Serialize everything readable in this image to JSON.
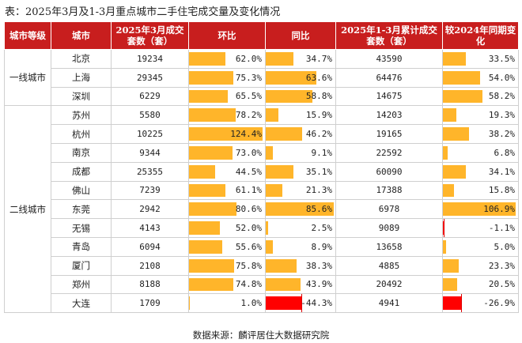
{
  "title": "表：2025年3月及1-3月重点城市二手住宅成交量及变化情况",
  "source": "数据来源：麟评居住大数据研究院",
  "headers": [
    "城市等级",
    "城市",
    "2025年3月成交套数（套）",
    "环比",
    "同比",
    "2025年1-3月累计成交套数（套）",
    "较2024年同期变化"
  ],
  "colors": {
    "header_bg": "#c81e1e",
    "bar_positive": "#ffb52a",
    "bar_negative": "#ff0000"
  },
  "groups": [
    {
      "tier": "一线城市",
      "rows": [
        {
          "city": "北京",
          "mar_units": "19234",
          "mom": "62.0%",
          "mom_v": 62.0,
          "yoy": "34.7%",
          "yoy_v": 34.7,
          "ytd_units": "43590",
          "ytd_chg": "33.5%",
          "ytd_v": 33.5
        },
        {
          "city": "上海",
          "mar_units": "29345",
          "mom": "75.3%",
          "mom_v": 75.3,
          "yoy": "63.6%",
          "yoy_v": 63.6,
          "ytd_units": "64476",
          "ytd_chg": "54.0%",
          "ytd_v": 54.0
        },
        {
          "city": "深圳",
          "mar_units": "6229",
          "mom": "65.5%",
          "mom_v": 65.5,
          "yoy": "58.8%",
          "yoy_v": 58.8,
          "ytd_units": "14675",
          "ytd_chg": "58.2%",
          "ytd_v": 58.2
        }
      ]
    },
    {
      "tier": "二线城市",
      "rows": [
        {
          "city": "苏州",
          "mar_units": "5580",
          "mom": "78.2%",
          "mom_v": 78.2,
          "yoy": "15.9%",
          "yoy_v": 15.9,
          "ytd_units": "14203",
          "ytd_chg": "19.3%",
          "ytd_v": 19.3
        },
        {
          "city": "杭州",
          "mar_units": "10225",
          "mom": "124.4%",
          "mom_v": 124.4,
          "yoy": "46.2%",
          "yoy_v": 46.2,
          "ytd_units": "19165",
          "ytd_chg": "38.2%",
          "ytd_v": 38.2
        },
        {
          "city": "南京",
          "mar_units": "9344",
          "mom": "73.0%",
          "mom_v": 73.0,
          "yoy": "9.1%",
          "yoy_v": 9.1,
          "ytd_units": "22592",
          "ytd_chg": "6.8%",
          "ytd_v": 6.8
        },
        {
          "city": "成都",
          "mar_units": "25355",
          "mom": "44.5%",
          "mom_v": 44.5,
          "yoy": "35.1%",
          "yoy_v": 35.1,
          "ytd_units": "60090",
          "ytd_chg": "34.1%",
          "ytd_v": 34.1
        },
        {
          "city": "佛山",
          "mar_units": "7239",
          "mom": "61.1%",
          "mom_v": 61.1,
          "yoy": "21.3%",
          "yoy_v": 21.3,
          "ytd_units": "17388",
          "ytd_chg": "15.8%",
          "ytd_v": 15.8
        },
        {
          "city": "东莞",
          "mar_units": "2942",
          "mom": "80.6%",
          "mom_v": 80.6,
          "yoy": "85.6%",
          "yoy_v": 85.6,
          "ytd_units": "6978",
          "ytd_chg": "106.9%",
          "ytd_v": 106.9
        },
        {
          "city": "无锡",
          "mar_units": "4143",
          "mom": "52.0%",
          "mom_v": 52.0,
          "yoy": "2.5%",
          "yoy_v": 2.5,
          "ytd_units": "9089",
          "ytd_chg": "-1.1%",
          "ytd_v": -1.1
        },
        {
          "city": "青岛",
          "mar_units": "6094",
          "mom": "55.6%",
          "mom_v": 55.6,
          "yoy": "8.9%",
          "yoy_v": 8.9,
          "ytd_units": "13658",
          "ytd_chg": "5.0%",
          "ytd_v": 5.0
        },
        {
          "city": "厦门",
          "mar_units": "2108",
          "mom": "75.8%",
          "mom_v": 75.8,
          "yoy": "38.3%",
          "yoy_v": 38.3,
          "ytd_units": "4885",
          "ytd_chg": "23.3%",
          "ytd_v": 23.3
        },
        {
          "city": "郑州",
          "mar_units": "8188",
          "mom": "74.8%",
          "mom_v": 74.8,
          "yoy": "43.9%",
          "yoy_v": 43.9,
          "ytd_units": "20492",
          "ytd_chg": "20.5%",
          "ytd_v": 20.5
        },
        {
          "city": "大连",
          "mar_units": "1709",
          "mom": "1.0%",
          "mom_v": 1.0,
          "yoy": "-44.3%",
          "yoy_v": -44.3,
          "ytd_units": "4941",
          "ytd_chg": "-26.9%",
          "ytd_v": -26.9
        }
      ]
    }
  ]
}
